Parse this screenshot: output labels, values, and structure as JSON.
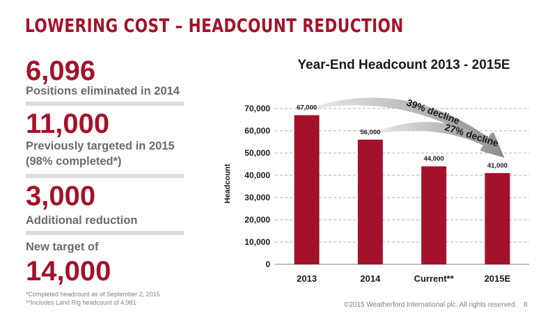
{
  "slide": {
    "title": "Lowering Cost – Headcount Reduction",
    "page_number": "8",
    "copyright": "©2015 Weatherford International plc.  All rights reserved."
  },
  "stats": [
    {
      "value": "6,096",
      "lines": [
        "Positions eliminated in 2014"
      ]
    },
    {
      "value": "11,000",
      "lines": [
        "Previously targeted in 2015",
        "(98% completed*)"
      ]
    },
    {
      "value": "3,000",
      "lines": [
        "Additional reduction"
      ]
    },
    {
      "value": "14,000",
      "lines": [
        "New target of"
      ]
    }
  ],
  "footnotes": [
    "*Completed headcount as of September 2, 2015",
    "**Includes Land Rig headcount of 4,981"
  ],
  "chart_data": {
    "type": "bar",
    "title": "Year-End Headcount 2013 - 2015E",
    "xlabel": "",
    "ylabel": "Headcount",
    "categories": [
      "2013",
      "2014",
      "Current**",
      "2015E"
    ],
    "values": [
      67000,
      56000,
      44000,
      41000
    ],
    "data_labels": [
      "67,000",
      "56,000",
      "44,000",
      "41,000"
    ],
    "ylim": [
      0,
      70000
    ],
    "yticks": [
      "0",
      "10,000",
      "20,000",
      "30,000",
      "40,000",
      "50,000",
      "60,000",
      "70,000"
    ],
    "grid": true,
    "annotations": [
      "39% decline",
      "27% decline"
    ],
    "colors": {
      "bar": "#a3122a",
      "grid": "#b0b0b0",
      "arrow": "#a6a6a6"
    }
  }
}
